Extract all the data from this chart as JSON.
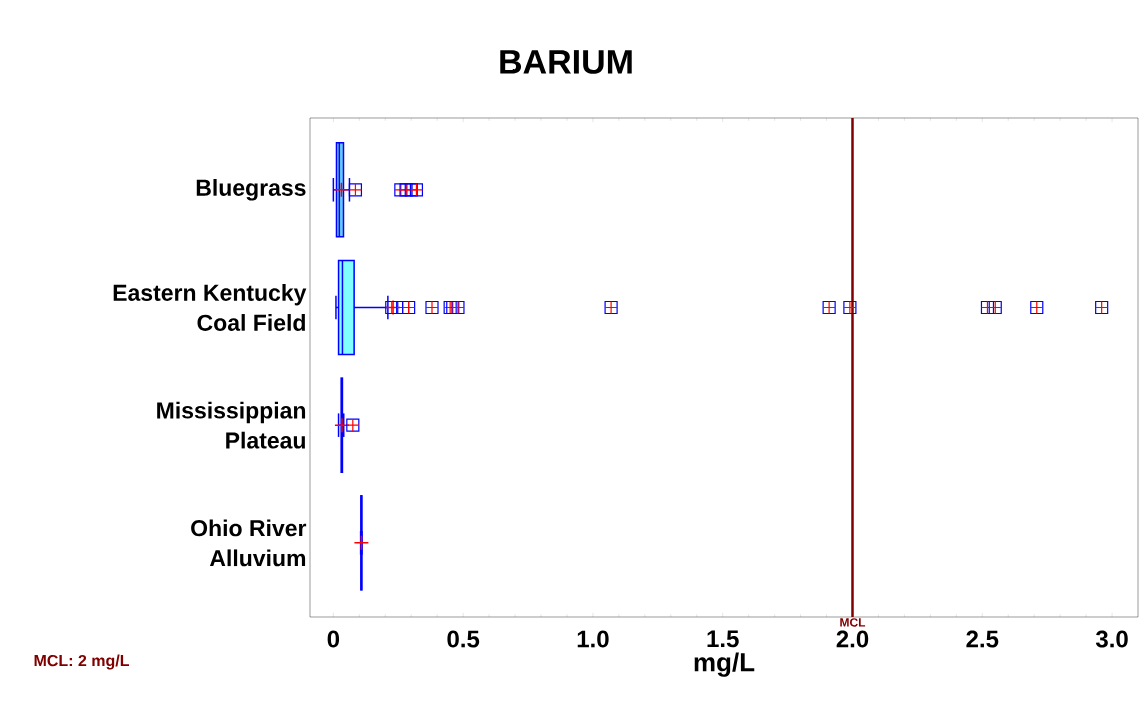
{
  "chart_data": {
    "type": "box",
    "orientation": "horizontal",
    "title": "BARIUM",
    "xlabel": "mg/L",
    "categories": [
      "Bluegrass",
      "Eastern Kentucky Coal Field",
      "Mississippian Plateau",
      "Ohio River Alluvium"
    ],
    "color": "#0000ff",
    "colors": [
      "#66ccff",
      "#80ffff",
      "#0000ff",
      "#0000ff"
    ],
    "marker": "square",
    "boxes": [
      {
        "low": 0.0,
        "q1": 0.012,
        "median": 0.023,
        "q3": 0.039,
        "high": 0.062,
        "mean": 0.031,
        "outliers": [
          0.085,
          0.26,
          0.28,
          0.3,
          0.32
        ]
      },
      {
        "low": 0.01,
        "q1": 0.02,
        "median": 0.035,
        "q3": 0.08,
        "high": 0.21,
        "mean": 0.23,
        "outliers": [
          0.225,
          0.267,
          0.29,
          0.38,
          0.45,
          0.46,
          0.48,
          1.07,
          1.91,
          1.99,
          2.52,
          2.55,
          2.71,
          2.96
        ]
      },
      {
        "low": 0.02,
        "q1": 0.03,
        "median": 0.033,
        "q3": 0.035,
        "high": 0.04,
        "mean": 0.033,
        "outliers": [
          0.075
        ]
      },
      {
        "low": 0.105,
        "q1": 0.106,
        "median": 0.108,
        "q3": 0.11,
        "high": 0.11,
        "mean": 0.108
      }
    ],
    "xlim": [
      -0.09,
      3.1
    ],
    "xticks": [
      0,
      {
        "value": 0.5,
        "label": "0.5"
      },
      {
        "value": 1,
        "label": "1.0"
      },
      {
        "value": 1.5,
        "label": "1.5"
      },
      {
        "value": 2,
        "label": "2.0"
      },
      {
        "value": 2.5,
        "label": "2.5"
      },
      {
        "value": 3,
        "label": "3.0"
      }
    ],
    "ref_lines": [
      {
        "axis": "x",
        "value": 2,
        "label": "MCL",
        "color": "#800000"
      }
    ],
    "annotations": [
      "MCL:  2 mg/L"
    ]
  }
}
